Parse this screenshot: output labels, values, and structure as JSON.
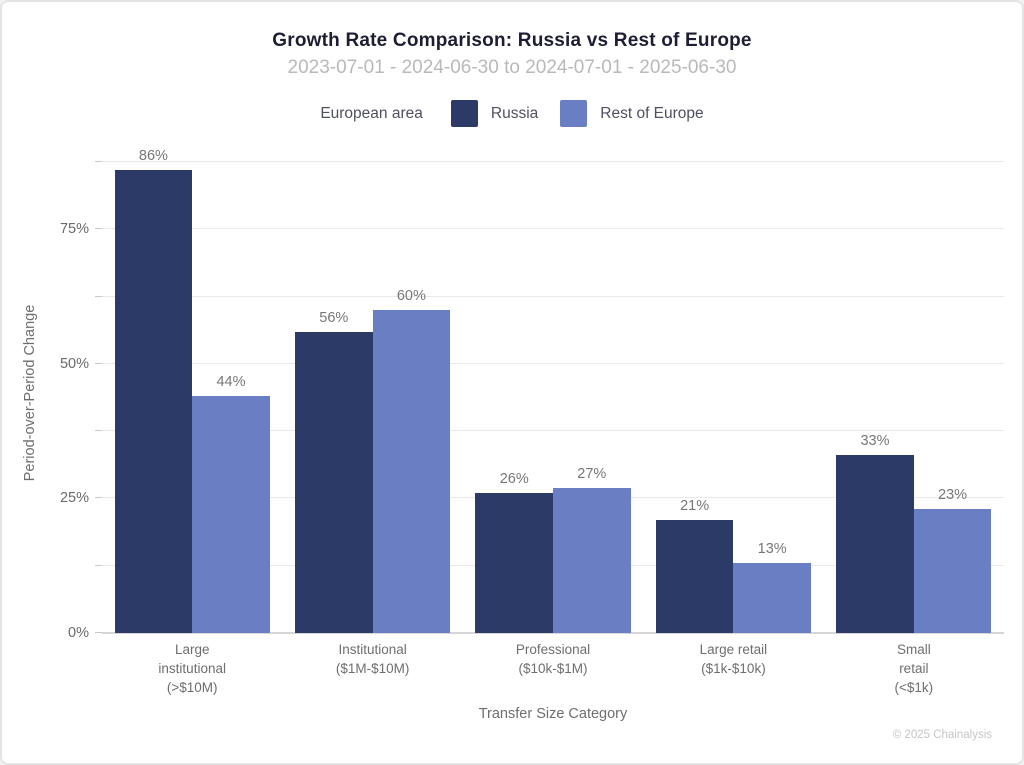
{
  "title": "Growth Rate Comparison: Russia vs Rest of Europe",
  "subtitle": "2023-07-01 - 2024-06-30 to 2024-07-01 - 2025-06-30",
  "legend": {
    "label": "European area",
    "entries": [
      {
        "name": "Russia",
        "color": "#2b3a67"
      },
      {
        "name": "Rest of Europe",
        "color": "#6a7ec3"
      }
    ]
  },
  "footer": "© 2025 Chainalysis",
  "chart_data": {
    "type": "bar",
    "title": "Growth Rate Comparison: Russia vs Rest of Europe",
    "subtitle": "2023-07-01 - 2024-06-30 to 2024-07-01 - 2025-06-30",
    "categories": [
      "Large institutional (>$10M)",
      "Institutional ($1M-$10M)",
      "Professional ($10k-$1M)",
      "Large retail ($1k-$10k)",
      "Small retail (<$1k)"
    ],
    "category_label_lines": [
      [
        "Large",
        "institutional",
        "(>$10M)"
      ],
      [
        "Institutional",
        "($1M-$10M)"
      ],
      [
        "Professional",
        "($10k-$1M)"
      ],
      [
        "Large retail",
        "($1k-$10k)"
      ],
      [
        "Small",
        "retail",
        "(<$1k)"
      ]
    ],
    "series": [
      {
        "name": "Russia",
        "color": "#2b3a67",
        "values": [
          86,
          56,
          26,
          21,
          33
        ]
      },
      {
        "name": "Rest of Europe",
        "color": "#6a7ec3",
        "values": [
          44,
          60,
          27,
          13,
          23
        ]
      }
    ],
    "value_suffix": "%",
    "xlabel": "Transfer Size Category",
    "ylabel": "Period-over-Period Change",
    "ylim": [
      0,
      89.2
    ],
    "yticks": [
      {
        "value": 0,
        "label": "0%"
      },
      {
        "value": 12.5
      },
      {
        "value": 25,
        "label": "25%"
      },
      {
        "value": 37.5
      },
      {
        "value": 50,
        "label": "50%"
      },
      {
        "value": 62.5
      },
      {
        "value": 75,
        "label": "75%"
      },
      {
        "value": 87.5
      }
    ],
    "grid": "horizontal",
    "legend_position": "top",
    "legend_title": "European area"
  }
}
